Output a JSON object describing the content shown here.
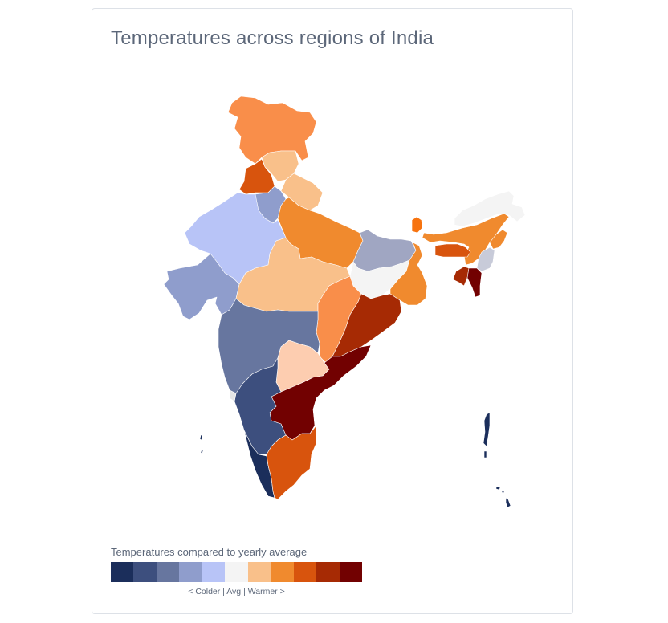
{
  "title": "Temperatures across regions of India",
  "legend": {
    "title": "Temperatures compared to yearly average",
    "caption": "< Colder  |  Avg  |  Warmer >",
    "colors": [
      "#1b2e5b",
      "#3d4f7e",
      "#67769f",
      "#8f9dcc",
      "#b8c4f7",
      "#f4f4f4",
      "#f9c08a",
      "#f08a2e",
      "#d8540d",
      "#a62a04",
      "#720101"
    ]
  },
  "chart_data": {
    "type": "choropleth",
    "title": "Temperatures across regions of India",
    "legend_title": "Temperatures compared to yearly average",
    "scale_labels": [
      "< Colder",
      "Avg",
      "Warmer >"
    ],
    "bins": 11,
    "bin_colors": [
      "#1b2e5b",
      "#3d4f7e",
      "#67769f",
      "#8f9dcc",
      "#b8c4f7",
      "#f4f4f4",
      "#f9c08a",
      "#f08a2e",
      "#d8540d",
      "#a62a04",
      "#720101"
    ],
    "regions": [
      {
        "name": "Jammu & Kashmir",
        "bin": 7,
        "color": "#f98e4a"
      },
      {
        "name": "Himachal Pradesh",
        "bin": 7,
        "color": "#f9c08a"
      },
      {
        "name": "Punjab",
        "bin": 9,
        "color": "#d8540d"
      },
      {
        "name": "Uttarakhand",
        "bin": 7,
        "color": "#f9c08a"
      },
      {
        "name": "Haryana",
        "bin": 4,
        "color": "#8f9dcc"
      },
      {
        "name": "Rajasthan",
        "bin": 5,
        "color": "#b8c4f7"
      },
      {
        "name": "Uttar Pradesh",
        "bin": 8,
        "color": "#f08a2e"
      },
      {
        "name": "Gujarat",
        "bin": 4,
        "color": "#8f9dcc"
      },
      {
        "name": "Madhya Pradesh",
        "bin": 7,
        "color": "#f9c08a"
      },
      {
        "name": "Bihar",
        "bin": 4,
        "color": "#a0a6c2"
      },
      {
        "name": "Jharkhand",
        "bin": 6,
        "color": "#f4f4f4"
      },
      {
        "name": "West Bengal",
        "bin": 8,
        "color": "#f08a2e"
      },
      {
        "name": "Sikkim",
        "bin": 8,
        "color": "#f7730f"
      },
      {
        "name": "Chhattisgarh",
        "bin": 8,
        "color": "#f98e4a"
      },
      {
        "name": "Odisha",
        "bin": 10,
        "color": "#a62a04"
      },
      {
        "name": "Maharashtra",
        "bin": 3,
        "color": "#67769f"
      },
      {
        "name": "Telangana",
        "bin": 7,
        "color": "#fdcdb0"
      },
      {
        "name": "Andhra Pradesh",
        "bin": 11,
        "color": "#720101"
      },
      {
        "name": "Karnataka",
        "bin": 2,
        "color": "#3d4f7e"
      },
      {
        "name": "Goa",
        "bin": 6,
        "color": "#e5e5e5"
      },
      {
        "name": "Kerala",
        "bin": 1,
        "color": "#1b2e5b"
      },
      {
        "name": "Tamil Nadu",
        "bin": 9,
        "color": "#d8540d"
      },
      {
        "name": "Arunachal Pradesh",
        "bin": 6,
        "color": "#f4f4f4"
      },
      {
        "name": "Assam",
        "bin": 8,
        "color": "#f08a2e"
      },
      {
        "name": "Meghalaya",
        "bin": 9,
        "color": "#d8540d"
      },
      {
        "name": "Nagaland",
        "bin": 8,
        "color": "#f08a2e"
      },
      {
        "name": "Manipur",
        "bin": 6,
        "color": "#c8cbd9"
      },
      {
        "name": "Tripura",
        "bin": 10,
        "color": "#a62a04"
      },
      {
        "name": "Mizoram",
        "bin": 11,
        "color": "#720101"
      },
      {
        "name": "Andaman & Nicobar Islands",
        "bin": 1,
        "color": "#1b2e5b"
      },
      {
        "name": "Lakshadweep",
        "bin": 1,
        "color": "#1b2e5b"
      }
    ]
  }
}
